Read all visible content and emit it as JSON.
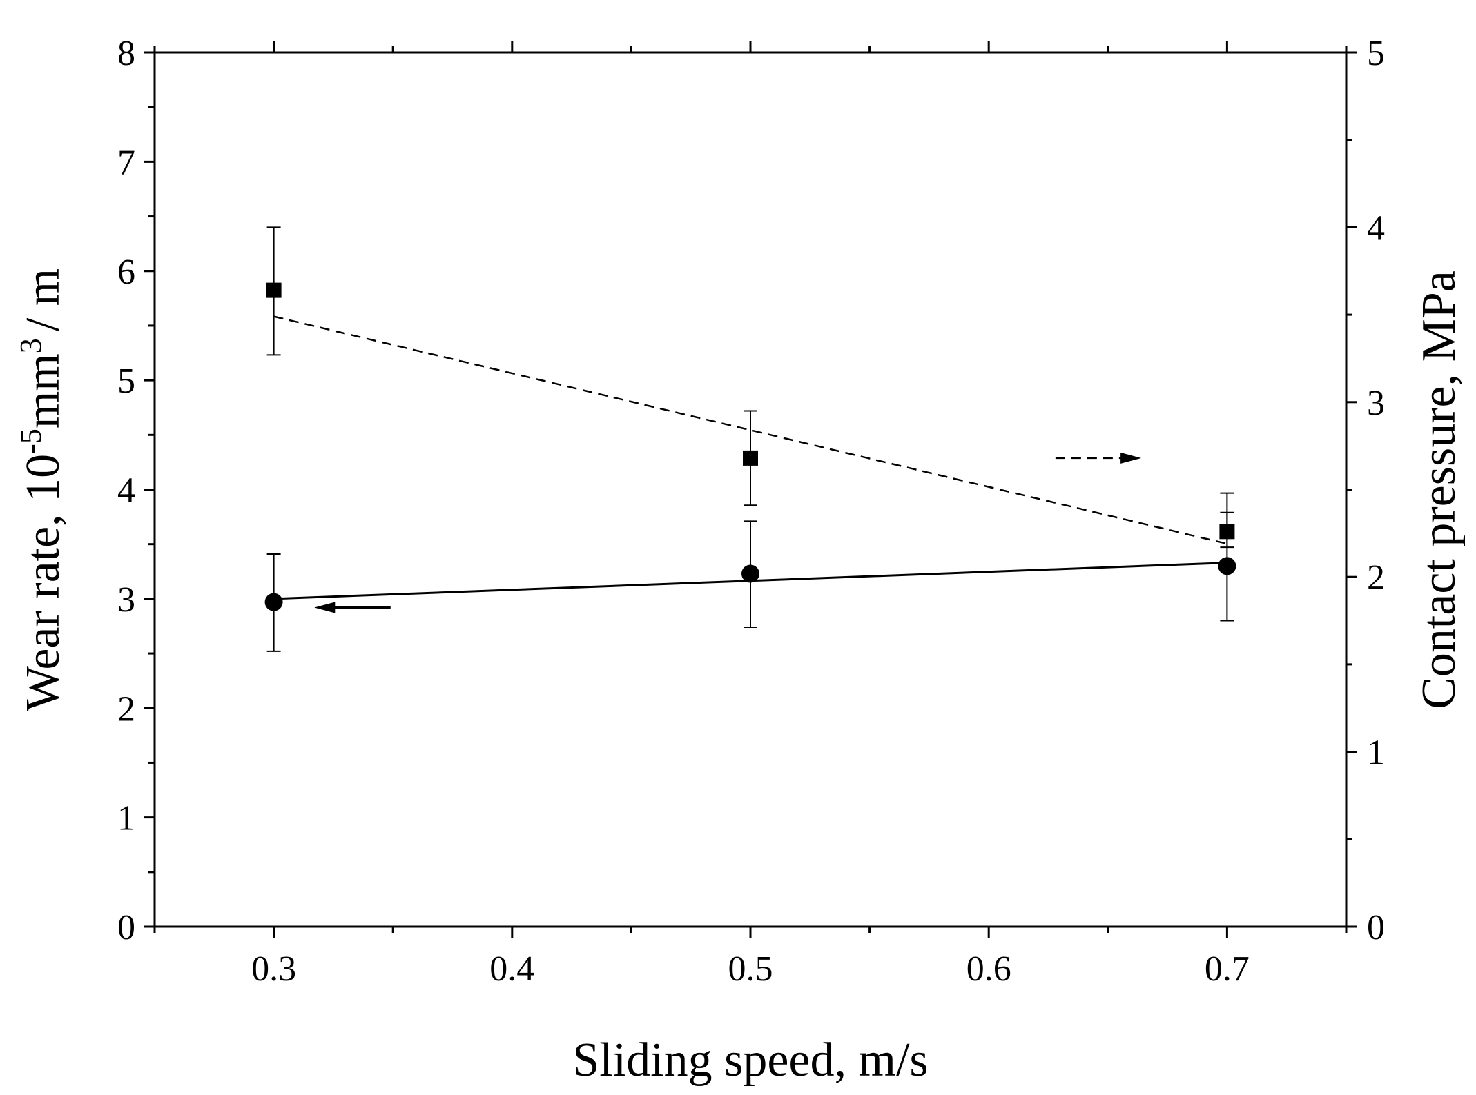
{
  "chart_data": {
    "type": "scatter",
    "title": "",
    "xlabel": "Sliding speed, m/s",
    "ylabel_left": {
      "prefix": "Wear rate, 10",
      "exp1": "-5",
      "mid": "mm",
      "exp2": "3",
      "suffix": "/ m"
    },
    "ylabel_right": "Contact pressure, MPa",
    "xlim": [
      0.25,
      0.75
    ],
    "ylim_left": [
      0,
      8
    ],
    "ylim_right": [
      0,
      5
    ],
    "x_ticks": [
      "0.3",
      "0.4",
      "0.5",
      "0.6",
      "0.7"
    ],
    "y_left_ticks": [
      "0",
      "1",
      "2",
      "3",
      "4",
      "5",
      "6",
      "7",
      "8"
    ],
    "y_right_ticks": [
      "0",
      "1",
      "2",
      "3",
      "4",
      "5"
    ],
    "grid": false,
    "series": [
      {
        "name": "Wear rate",
        "axis": "left",
        "marker": "circle",
        "x": [
          0.3,
          0.5,
          0.7
        ],
        "y": [
          2.97,
          3.23,
          3.3
        ],
        "err_low": [
          2.52,
          2.74,
          2.8
        ],
        "err_high": [
          3.41,
          3.71,
          3.79
        ],
        "fit": {
          "style": "solid",
          "x": [
            0.3,
            0.7
          ],
          "y": [
            3.0,
            3.33
          ]
        },
        "indicator": "arrow-left"
      },
      {
        "name": "Contact pressure",
        "axis": "right",
        "marker": "square",
        "x": [
          0.3,
          0.5,
          0.7
        ],
        "y": [
          3.64,
          2.68,
          2.26
        ],
        "err_low": [
          3.27,
          2.41,
          2.17
        ],
        "err_high": [
          4.0,
          2.95,
          2.48
        ],
        "fit": {
          "style": "dashed",
          "x": [
            0.3,
            0.7
          ],
          "y": [
            3.49,
            2.19
          ]
        },
        "indicator": "arrow-right"
      }
    ]
  }
}
